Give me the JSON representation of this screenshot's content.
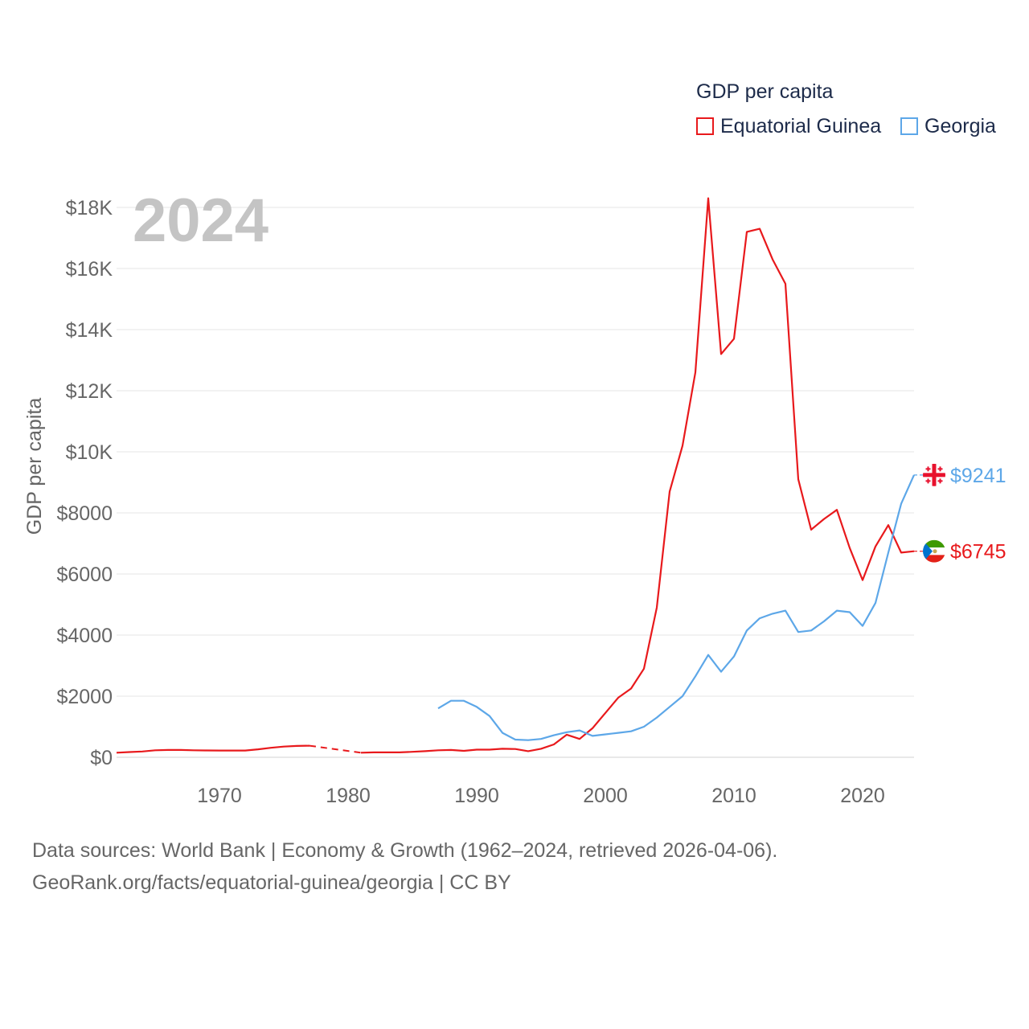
{
  "legend": {
    "title": "GDP per capita",
    "items": [
      {
        "label": "Equatorial Guinea",
        "color": "#e8191c"
      },
      {
        "label": "Georgia",
        "color": "#5da7e8"
      }
    ]
  },
  "footer": {
    "line1": "Data sources: World Bank | Economy & Growth (1962–2024, retrieved 2026-04-06).",
    "line2": "GeoRank.org/facts/equatorial-guinea/georgia | CC BY"
  },
  "chart_data": {
    "type": "line",
    "title": "GDP per capita",
    "year_label": "2024",
    "xlabel": "",
    "ylabel": "GDP per capita",
    "xlim": [
      1962,
      2024
    ],
    "ylim": [
      0,
      18000
    ],
    "x_ticks": [
      1970,
      1980,
      1990,
      2000,
      2010,
      2020
    ],
    "y_ticks": [
      0,
      2000,
      4000,
      6000,
      8000,
      10000,
      12000,
      14000,
      16000,
      18000
    ],
    "y_tick_labels": [
      "$0",
      "$2000",
      "$4000",
      "$6000",
      "$8000",
      "$10K",
      "$12K",
      "$14K",
      "$16K",
      "$18K"
    ],
    "grid": true,
    "legend_position": "top-right",
    "series": [
      {
        "name": "Equatorial Guinea",
        "color": "#e8191c",
        "end_label": "$6745",
        "flag": "equatorial-guinea-flag",
        "points": [
          [
            1962,
            150
          ],
          [
            1963,
            170
          ],
          [
            1964,
            190
          ],
          [
            1965,
            230
          ],
          [
            1966,
            240
          ],
          [
            1967,
            240
          ],
          [
            1968,
            230
          ],
          [
            1969,
            225
          ],
          [
            1970,
            220
          ],
          [
            1971,
            220
          ],
          [
            1972,
            220
          ],
          [
            1973,
            260
          ],
          [
            1974,
            310
          ],
          [
            1975,
            350
          ],
          [
            1976,
            370
          ],
          [
            1977,
            380
          ],
          [
            1981,
            150
          ],
          [
            1982,
            160
          ],
          [
            1983,
            160
          ],
          [
            1984,
            160
          ],
          [
            1985,
            180
          ],
          [
            1986,
            200
          ],
          [
            1987,
            230
          ],
          [
            1988,
            240
          ],
          [
            1989,
            210
          ],
          [
            1990,
            250
          ],
          [
            1991,
            250
          ],
          [
            1992,
            280
          ],
          [
            1993,
            270
          ],
          [
            1994,
            200
          ],
          [
            1995,
            280
          ],
          [
            1996,
            420
          ],
          [
            1997,
            740
          ],
          [
            1998,
            600
          ],
          [
            1999,
            950
          ],
          [
            2000,
            1450
          ],
          [
            2001,
            1950
          ],
          [
            2002,
            2250
          ],
          [
            2003,
            2900
          ],
          [
            2004,
            4900
          ],
          [
            2005,
            8700
          ],
          [
            2006,
            10200
          ],
          [
            2007,
            12600
          ],
          [
            2008,
            18300
          ],
          [
            2009,
            13200
          ],
          [
            2010,
            13700
          ],
          [
            2011,
            17200
          ],
          [
            2012,
            17300
          ],
          [
            2013,
            16300
          ],
          [
            2014,
            15500
          ],
          [
            2015,
            9100
          ],
          [
            2016,
            7450
          ],
          [
            2017,
            7800
          ],
          [
            2018,
            8100
          ],
          [
            2019,
            6850
          ],
          [
            2020,
            5800
          ],
          [
            2021,
            6900
          ],
          [
            2022,
            7600
          ],
          [
            2023,
            6700
          ],
          [
            2024,
            6745
          ]
        ],
        "gaps": [
          [
            1977,
            1981
          ]
        ]
      },
      {
        "name": "Georgia",
        "color": "#5da7e8",
        "end_label": "$9241",
        "flag": "georgia-flag",
        "points": [
          [
            1987,
            1600
          ],
          [
            1988,
            1850
          ],
          [
            1989,
            1850
          ],
          [
            1990,
            1650
          ],
          [
            1991,
            1350
          ],
          [
            1992,
            800
          ],
          [
            1993,
            580
          ],
          [
            1994,
            560
          ],
          [
            1995,
            600
          ],
          [
            1996,
            720
          ],
          [
            1997,
            820
          ],
          [
            1998,
            880
          ],
          [
            1999,
            700
          ],
          [
            2000,
            750
          ],
          [
            2001,
            800
          ],
          [
            2002,
            850
          ],
          [
            2003,
            1000
          ],
          [
            2004,
            1300
          ],
          [
            2005,
            1650
          ],
          [
            2006,
            2000
          ],
          [
            2007,
            2650
          ],
          [
            2008,
            3350
          ],
          [
            2009,
            2800
          ],
          [
            2010,
            3300
          ],
          [
            2011,
            4150
          ],
          [
            2012,
            4550
          ],
          [
            2013,
            4700
          ],
          [
            2014,
            4800
          ],
          [
            2015,
            4100
          ],
          [
            2016,
            4150
          ],
          [
            2017,
            4450
          ],
          [
            2018,
            4800
          ],
          [
            2019,
            4750
          ],
          [
            2020,
            4300
          ],
          [
            2021,
            5050
          ],
          [
            2022,
            6700
          ],
          [
            2023,
            8300
          ],
          [
            2024,
            9241
          ]
        ],
        "gaps": []
      }
    ]
  }
}
